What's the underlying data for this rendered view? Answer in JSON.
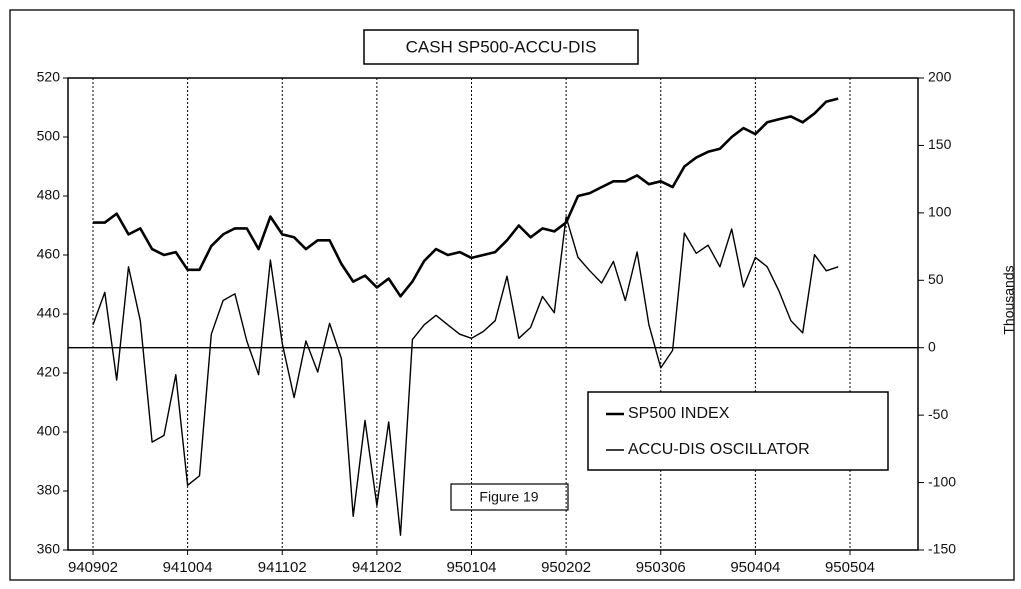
{
  "chart_data": {
    "type": "line",
    "title": "CASH SP500-ACCU-DIS",
    "annotation": "Figure 19",
    "y2_label": "Thousands",
    "legend": "lower right",
    "grid": true,
    "categories": [
      "940902",
      null,
      null,
      null,
      null,
      null,
      null,
      null,
      "941004",
      null,
      null,
      null,
      null,
      null,
      null,
      null,
      "941102",
      null,
      null,
      null,
      null,
      null,
      null,
      null,
      "941202",
      null,
      null,
      null,
      null,
      null,
      null,
      null,
      "950104",
      null,
      null,
      null,
      null,
      null,
      null,
      null,
      "950202",
      null,
      null,
      null,
      null,
      null,
      null,
      null,
      "950306",
      null,
      null,
      null,
      null,
      null,
      null,
      null,
      "950404",
      null,
      null,
      null,
      null,
      null,
      null,
      null,
      "950504"
    ],
    "ylim": [
      360,
      520
    ],
    "yticks": [
      360,
      380,
      400,
      420,
      440,
      460,
      480,
      500,
      520
    ],
    "y2lim": [
      -150,
      200
    ],
    "y2ticks": [
      -150,
      -100,
      -50,
      0,
      50,
      100,
      150,
      200
    ],
    "series": [
      {
        "name": "SP500 INDEX",
        "color": "#000000",
        "width": 2.6,
        "values": [
          471,
          471,
          474,
          467,
          469,
          462,
          460,
          461,
          455,
          455,
          463,
          467,
          469,
          469,
          462,
          473,
          467,
          466,
          462,
          465,
          465,
          457,
          451,
          453,
          449,
          452,
          446,
          451,
          458,
          462,
          460,
          461,
          459,
          460,
          461,
          465,
          470,
          466,
          469,
          468,
          471,
          480,
          481,
          483,
          485,
          485,
          487,
          484,
          485,
          483,
          490,
          493,
          495,
          496,
          500,
          503,
          501,
          505,
          506,
          507,
          505,
          508,
          512,
          513,
          null
        ]
      },
      {
        "name": "ACCU-DIS OSCILLATOR",
        "color": "#000000",
        "width": 1.4,
        "axis": "y2",
        "values": [
          17,
          41,
          -24,
          60,
          20,
          -70,
          -65,
          -20,
          -102,
          -95,
          10,
          35,
          40,
          5,
          -20,
          65,
          3,
          -37,
          5,
          -18,
          18,
          -8,
          -125,
          -54,
          -117,
          -55,
          -139,
          6,
          17,
          24,
          17,
          10,
          7,
          12,
          20,
          53,
          7,
          15,
          38,
          26,
          97,
          67,
          57,
          48,
          64,
          35,
          71,
          17,
          -15,
          -2,
          85,
          70,
          76,
          60,
          88,
          45,
          67,
          60,
          42,
          20,
          11,
          69,
          57,
          60,
          null
        ]
      }
    ]
  }
}
